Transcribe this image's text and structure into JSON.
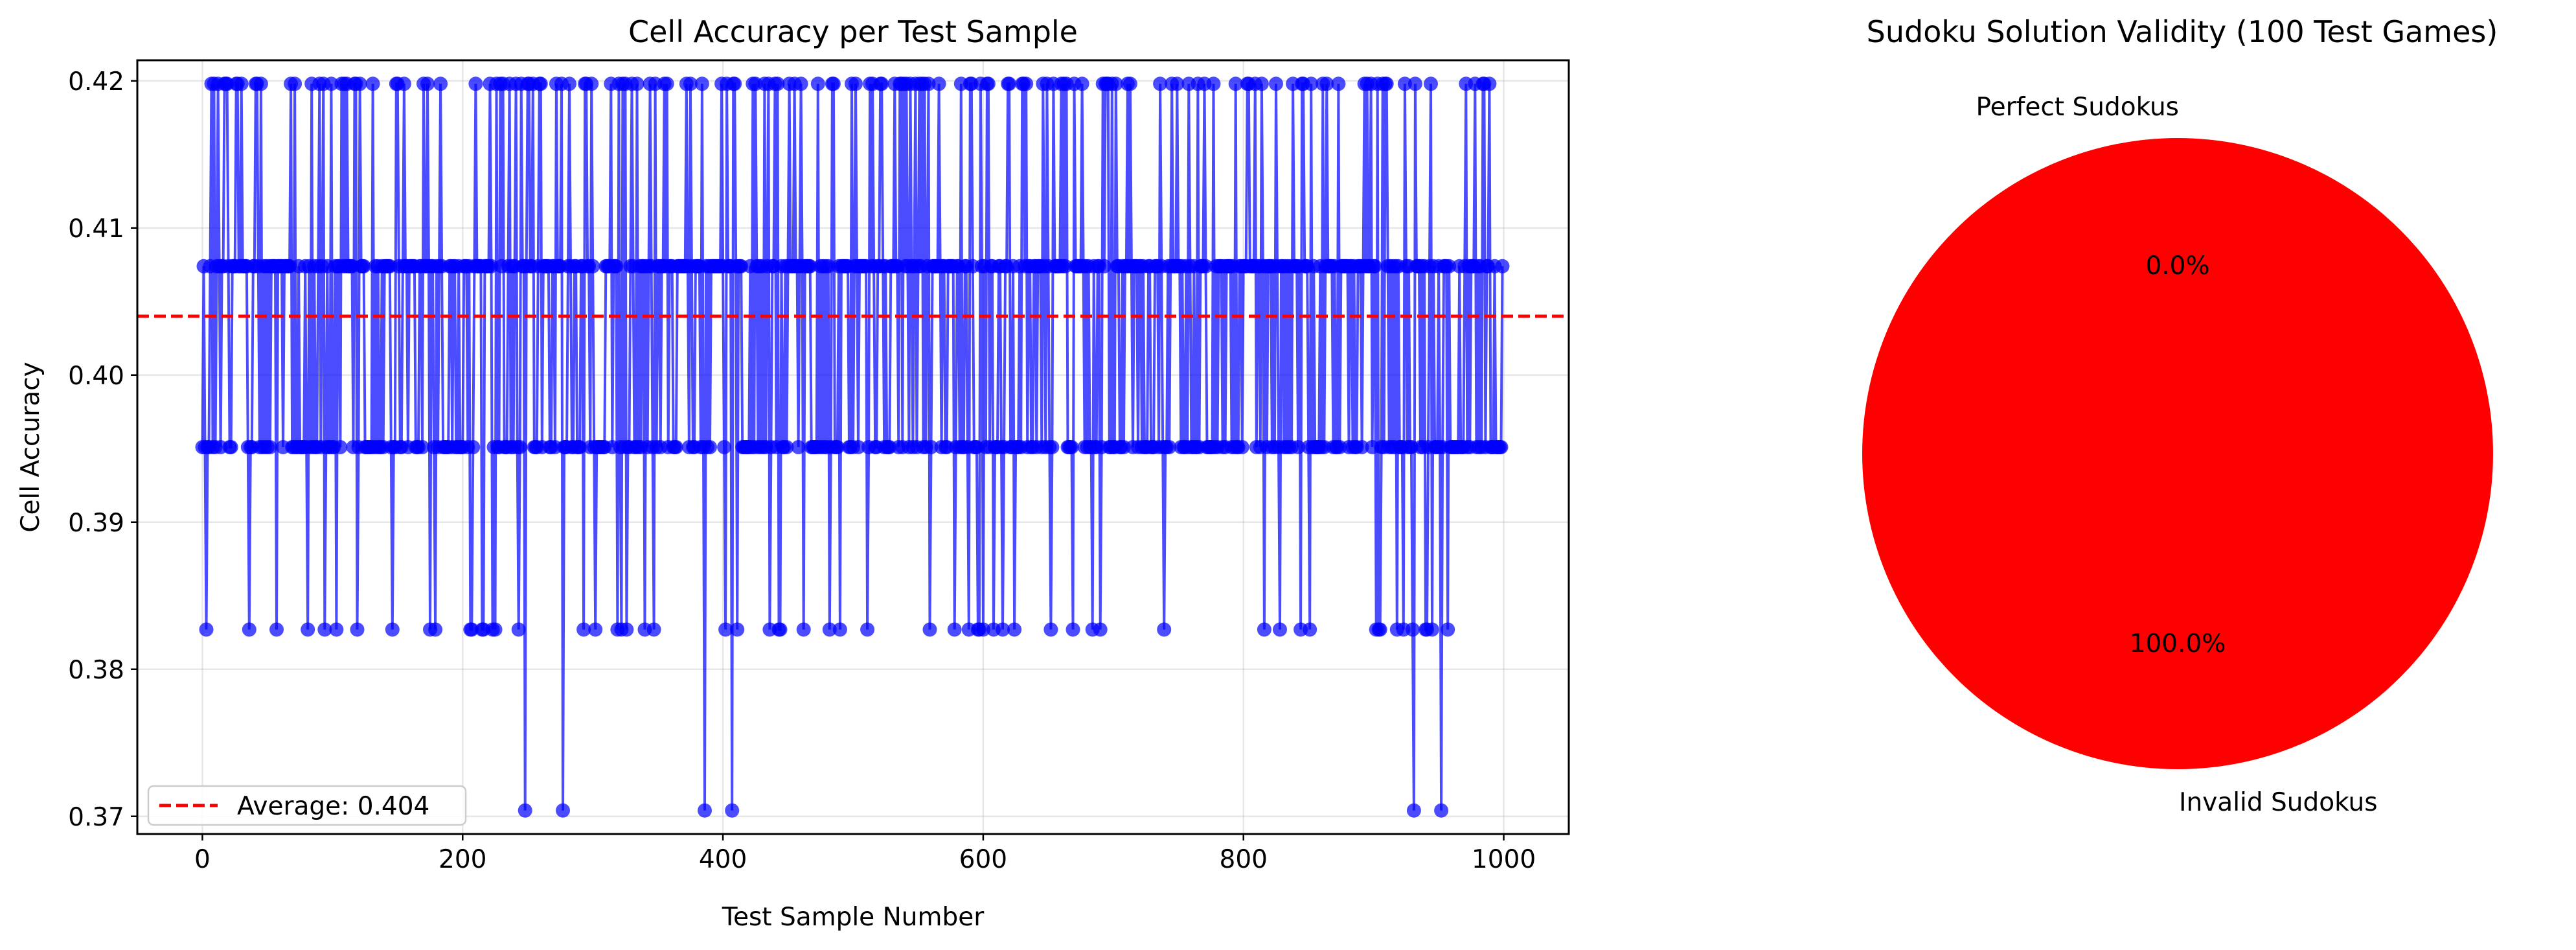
{
  "chart_data": [
    {
      "type": "line",
      "title": "Cell Accuracy per Test Sample",
      "xlabel": "Test Sample Number",
      "ylabel": "Cell Accuracy",
      "xlim": [
        -50,
        1050
      ],
      "ylim": [
        0.3688,
        0.4214
      ],
      "xticks": [
        0,
        200,
        400,
        600,
        800,
        1000
      ],
      "xtick_labels": [
        "0",
        "200",
        "400",
        "600",
        "800",
        "1000"
      ],
      "yticks": [
        0.37,
        0.38,
        0.39,
        0.4,
        0.41,
        0.42
      ],
      "ytick_labels": [
        "0.37",
        "0.38",
        "0.39",
        "0.40",
        "0.41",
        "0.42"
      ],
      "grid": true,
      "legend_position": "lower-left",
      "series": [
        {
          "name": "Cell accuracy",
          "color": "#0000ff",
          "marker": "circle",
          "n_points": 1000,
          "level_values": [
            0.3704,
            0.3827,
            0.3951,
            0.4074,
            0.4198
          ],
          "low_points_x": [
            248,
            277,
            386,
            407,
            931,
            952
          ],
          "note_levels": "values alternate between the five discrete levels; most samples at 0.4074 and 0.3951"
        }
      ],
      "average_line": {
        "value": 0.404,
        "color": "#ff0000",
        "style": "dashed",
        "legend_label": "Average: 0.404"
      }
    },
    {
      "type": "pie",
      "title": "Sudoku Solution Validity (100 Test Games)",
      "labels": [
        "Perfect Sudokus",
        "Invalid Sudokus"
      ],
      "values": [
        0,
        100
      ],
      "percent_labels": [
        "0.0%",
        "100.0%"
      ],
      "colors": [
        "#00cc00",
        "#ff0000"
      ]
    }
  ]
}
